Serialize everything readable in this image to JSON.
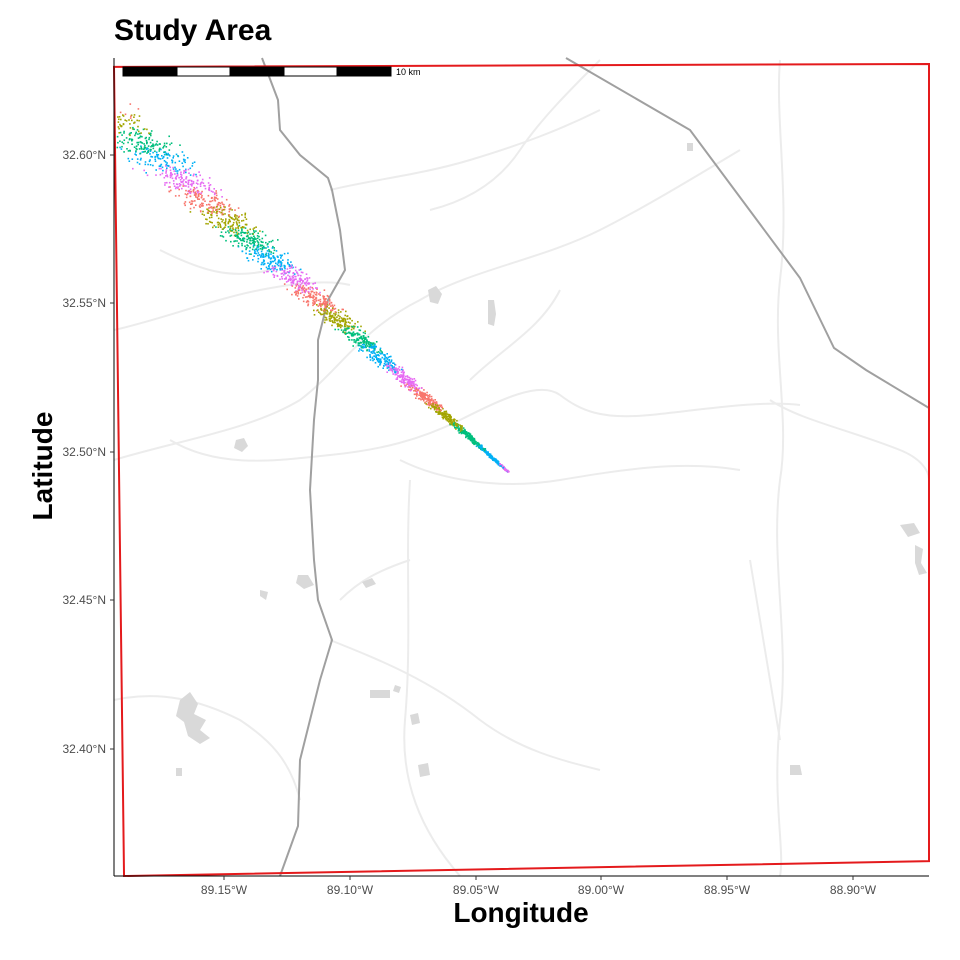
{
  "map": {
    "title": "Study Area",
    "xlabel": "Longitude",
    "ylabel": "Latitude",
    "x_ticks": [
      "89.15°W",
      "89.10°W",
      "89.05°W",
      "89.00°W",
      "88.95°W",
      "88.90°W"
    ],
    "y_ticks": [
      "32.60°N",
      "32.55°N",
      "32.50°N",
      "32.45°N",
      "32.40°N"
    ],
    "scale_bar_label": "10 km",
    "colors": {
      "boundary": "#e41a1c",
      "highway": "#999999",
      "minor_road": "#ececec",
      "water": "#d9d9d9",
      "palette": [
        "#a3a500",
        "#00bf7d",
        "#00b0f6",
        "#e76bf3",
        "#f8766d"
      ]
    }
  },
  "chart_data": {
    "type": "scatter",
    "title": "Study Area",
    "xlabel": "Longitude",
    "ylabel": "Latitude",
    "xlim": [
      -89.19,
      -88.865
    ],
    "ylim": [
      32.36,
      32.635
    ],
    "plume": {
      "start": [
        -89.19,
        32.615
      ],
      "end": [
        -89.033,
        32.496
      ],
      "colors_cycle": [
        "#a3a500",
        "#00bf7d",
        "#00b0f6",
        "#e76bf3",
        "#f8766d"
      ]
    },
    "boundary": [
      [
        -89.19,
        32.632
      ],
      [
        -88.865,
        32.633
      ],
      [
        -88.865,
        32.365
      ],
      [
        -89.186,
        32.36
      ]
    ],
    "scale_bar": {
      "length": "10 km",
      "segments": 5
    }
  }
}
